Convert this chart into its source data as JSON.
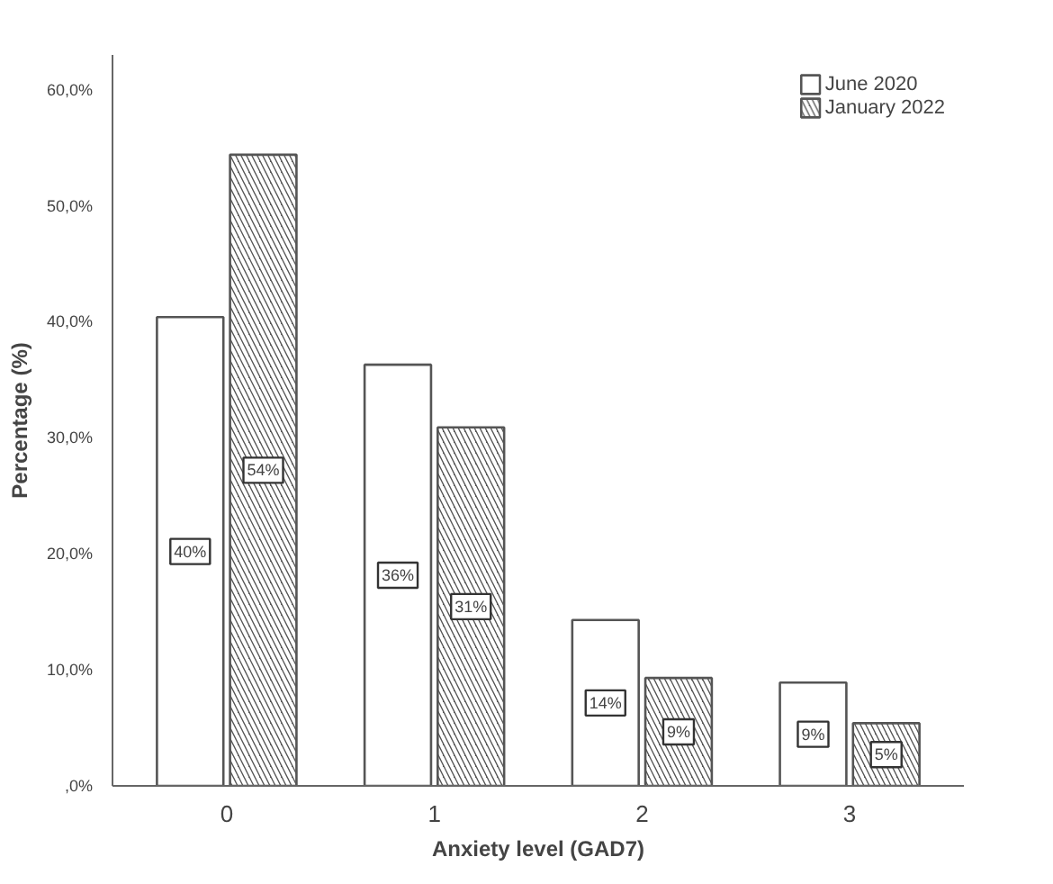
{
  "chart_data": {
    "type": "bar",
    "xlabel": "Anxiety level (GAD7)",
    "ylabel": "Percentage (%)",
    "categories": [
      "0",
      "1",
      "2",
      "3"
    ],
    "series": [
      {
        "name": "June 2020",
        "color": "#ffffff",
        "values": [
          40.4,
          36.3,
          14.3,
          8.9
        ],
        "value_labels": [
          "40%",
          "36%",
          "14%",
          "9%"
        ]
      },
      {
        "name": "January 2022",
        "color": "#555555",
        "values": [
          54.4,
          30.9,
          9.3,
          5.4
        ],
        "value_labels": [
          "54%",
          "31%",
          "9%",
          "5%"
        ]
      }
    ],
    "ylim": [
      0,
      63
    ],
    "yticks": [
      {
        "value": 0,
        "label": ",0%"
      },
      {
        "value": 10,
        "label": "10,0%"
      },
      {
        "value": 20,
        "label": "20,0%"
      },
      {
        "value": 30,
        "label": "30,0%"
      },
      {
        "value": 40,
        "label": "40,0%"
      },
      {
        "value": 50,
        "label": "50,0%"
      },
      {
        "value": 60,
        "label": "60,0%"
      }
    ],
    "grid": false,
    "legend": "top right"
  }
}
